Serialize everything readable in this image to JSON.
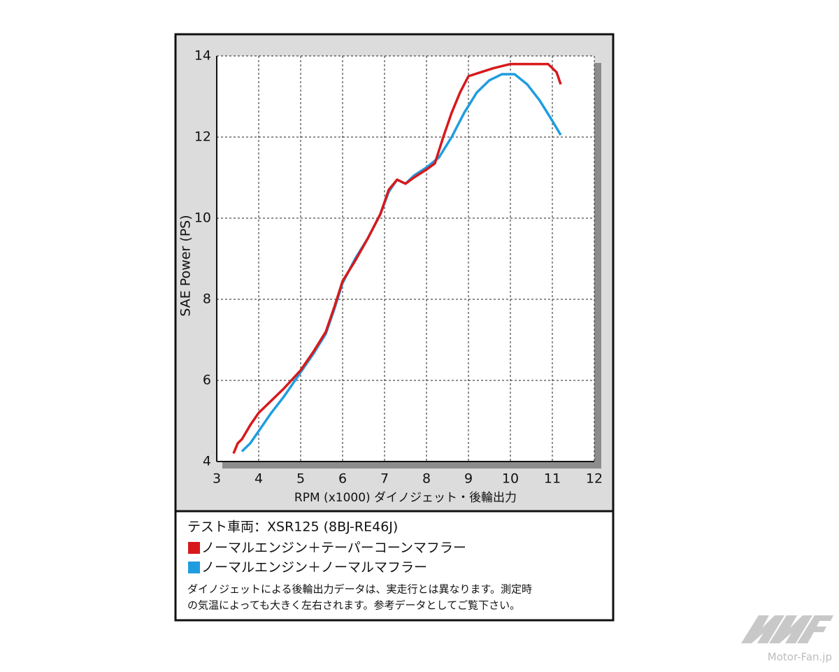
{
  "chart_data": {
    "type": "line",
    "x_label": "RPM (x1000) ダイノジェット・後輪出力",
    "y_label": "SAE Power (PS)",
    "xlim": [
      3,
      12
    ],
    "xticks": [
      3,
      4,
      5,
      6,
      7,
      8,
      9,
      10,
      11,
      12
    ],
    "ylim": [
      4,
      14
    ],
    "yticks": [
      4,
      6,
      8,
      10,
      12,
      14
    ],
    "grid": true,
    "legend_title": "テスト車両：XSR125 (8BJ-RE46J)",
    "series": [
      {
        "name": "ノーマルエンジン＋テーパーコーンマフラー",
        "color": "#d7191c",
        "x": [
          3.4,
          3.5,
          3.6,
          3.8,
          4,
          4.3,
          4.6,
          5,
          5.3,
          5.6,
          5.8,
          6,
          6.3,
          6.6,
          6.9,
          7.1,
          7.3,
          7.5,
          7.7,
          8,
          8.2,
          8.4,
          8.6,
          8.8,
          9,
          9.3,
          9.6,
          10,
          10.3,
          10.6,
          10.9,
          11,
          11.1,
          11.2
        ],
        "values": [
          4.2,
          4.45,
          4.55,
          4.9,
          5.2,
          5.5,
          5.8,
          6.25,
          6.7,
          7.2,
          7.8,
          8.45,
          8.95,
          9.5,
          10.1,
          10.7,
          10.95,
          10.85,
          11.0,
          11.2,
          11.35,
          12.0,
          12.6,
          13.1,
          13.5,
          13.6,
          13.7,
          13.8,
          13.8,
          13.8,
          13.8,
          13.7,
          13.6,
          13.3
        ]
      },
      {
        "name": "ノーマルエンジン＋ノーマルマフラー",
        "color": "#1f9de0",
        "x": [
          3.6,
          3.8,
          4,
          4.3,
          4.6,
          5,
          5.3,
          5.6,
          5.8,
          6,
          6.3,
          6.6,
          6.9,
          7.1,
          7.3,
          7.5,
          7.7,
          8,
          8.3,
          8.6,
          8.9,
          9.2,
          9.5,
          9.8,
          10.1,
          10.4,
          10.7,
          11,
          11.2
        ],
        "values": [
          4.25,
          4.45,
          4.75,
          5.2,
          5.6,
          6.2,
          6.65,
          7.15,
          7.75,
          8.4,
          9.0,
          9.5,
          10.1,
          10.65,
          10.95,
          10.85,
          11.05,
          11.25,
          11.5,
          12.0,
          12.6,
          13.1,
          13.4,
          13.55,
          13.55,
          13.3,
          12.9,
          12.4,
          12.05
        ]
      }
    ],
    "notes": [
      "ダイノジェットによる後輪出力データは、実走行とは異なります。測定時",
      "の気温によっても大きく左右されます。参考データとしてご覧下さい。"
    ],
    "source": "Motor-Fan.jp"
  }
}
